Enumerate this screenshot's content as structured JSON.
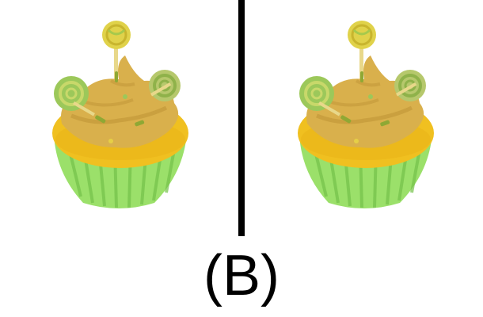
{
  "caption": "(B)",
  "panels": [
    {
      "name": "cupcake-left"
    },
    {
      "name": "cupcake-right"
    }
  ],
  "colors": {
    "wrapper": "#9be06a",
    "wrapper_dark": "#74c24a",
    "cake": "#f0c020",
    "frosting": "#d9b04c",
    "frosting_shade": "#c39a3a",
    "lollipop": "#e0d24a",
    "lollipop_green": "#9cc85a",
    "divider": "#000000"
  }
}
